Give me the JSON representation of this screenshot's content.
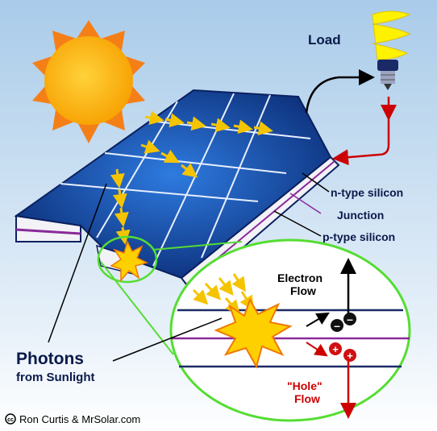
{
  "labels": {
    "load": "Load",
    "n_type": "n-type silicon",
    "junction": "Junction",
    "p_type": "p-type silicon",
    "electron_flow": [
      "Electron",
      "Flow"
    ],
    "photons": "Photons",
    "from_sunlight": "from Sunlight",
    "hole_flow": [
      "\"Hole\"",
      "Flow"
    ]
  },
  "credit": "Ron Curtis & MrSolar.com"
}
